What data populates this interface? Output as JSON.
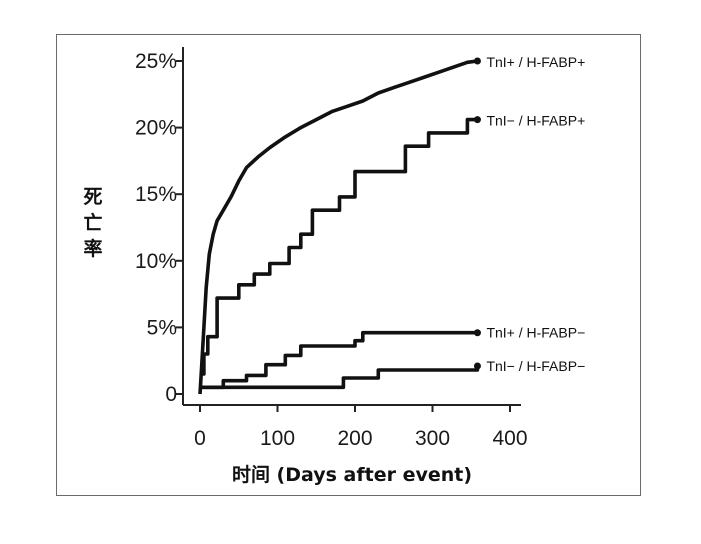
{
  "chart_data": {
    "type": "line",
    "ylabel": "死亡率",
    "xlabel": "时间  (Days after event)",
    "xlim": [
      0,
      400
    ],
    "ylim": [
      0,
      25
    ],
    "x_ticks": [
      "0",
      "100",
      "200",
      "300",
      "400"
    ],
    "y_ticks": [
      "0",
      "5%",
      "10%",
      "15%",
      "20%",
      "25%"
    ],
    "grid": false,
    "legend": "direct labels at line ends",
    "series": [
      {
        "name": "TnI+ / H-FABP+",
        "step": false,
        "x": [
          0,
          2,
          5,
          8,
          12,
          17,
          22,
          30,
          40,
          50,
          60,
          75,
          90,
          110,
          130,
          150,
          170,
          190,
          210,
          230,
          250,
          270,
          290,
          310,
          330,
          345,
          358
        ],
        "values": [
          0,
          2,
          5,
          8,
          10.5,
          12,
          13,
          13.8,
          14.8,
          16,
          17,
          17.8,
          18.5,
          19.3,
          20,
          20.6,
          21.2,
          21.6,
          22,
          22.6,
          23,
          23.4,
          23.8,
          24.2,
          24.6,
          24.9,
          25
        ]
      },
      {
        "name": "TnI− / H-FABP+",
        "step": true,
        "x": [
          0,
          5,
          10,
          22,
          50,
          70,
          90,
          115,
          130,
          145,
          180,
          200,
          265,
          295,
          345,
          358
        ],
        "values": [
          1.5,
          3,
          4.3,
          7.2,
          8.2,
          9,
          9.8,
          11,
          12,
          13.8,
          14.8,
          16.7,
          18.6,
          19.6,
          20.6,
          20.6
        ]
      },
      {
        "name": "TnI+ / H-FABP−",
        "step": true,
        "x": [
          0,
          30,
          60,
          85,
          110,
          130,
          200,
          210,
          358
        ],
        "values": [
          0.5,
          1,
          1.4,
          2.2,
          2.9,
          3.6,
          4,
          4.6,
          4.6
        ]
      },
      {
        "name": "TnI− / H-FABP−",
        "step": true,
        "x": [
          0,
          185,
          230,
          358
        ],
        "values": [
          0.5,
          1.2,
          1.8,
          2.1
        ]
      }
    ]
  }
}
